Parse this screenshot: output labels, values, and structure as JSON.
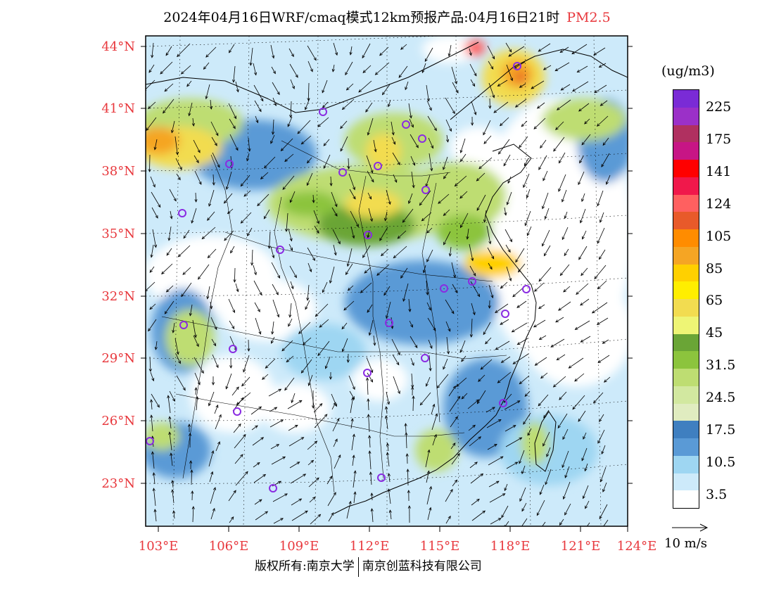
{
  "title": {
    "main": "2024年04月16日WRF/cmaq模式12km预报产品:04月16日21时",
    "variable": "PM2.5"
  },
  "units": "(ug/m3)",
  "colorbar": {
    "labels": [
      "225",
      "175",
      "141",
      "124",
      "105",
      "85",
      "65",
      "45",
      "31.5",
      "24.5",
      "17.5",
      "10.5",
      "3.5"
    ],
    "colors": [
      "#7a2bd6",
      "#9b30c8",
      "#b03060",
      "#c71585",
      "#ff0000",
      "#f0184b",
      "#ff6060",
      "#e85a2a",
      "#ff8c00",
      "#f5a524",
      "#ffd000",
      "#ffee00",
      "#f2dc50",
      "#eef575",
      "#6aa536",
      "#8cc43d",
      "#bedd72",
      "#d2e8a0",
      "#e0ecc0",
      "#3f7fc0",
      "#5a9ad6",
      "#9ed6f2",
      "#cdeafa",
      "#ffffff"
    ]
  },
  "axes": {
    "lat_labels": [
      "44°N",
      "41°N",
      "38°N",
      "35°N",
      "32°N",
      "29°N",
      "26°N",
      "23°N"
    ],
    "lon_labels": [
      "103°E",
      "106°E",
      "109°E",
      "112°E",
      "115°E",
      "118°E",
      "121°E",
      "124°E"
    ]
  },
  "wind_scale": "10 m/s",
  "footer": {
    "left": "版权所有:南京大学",
    "right": "南京创蓝科技有限公司"
  }
}
